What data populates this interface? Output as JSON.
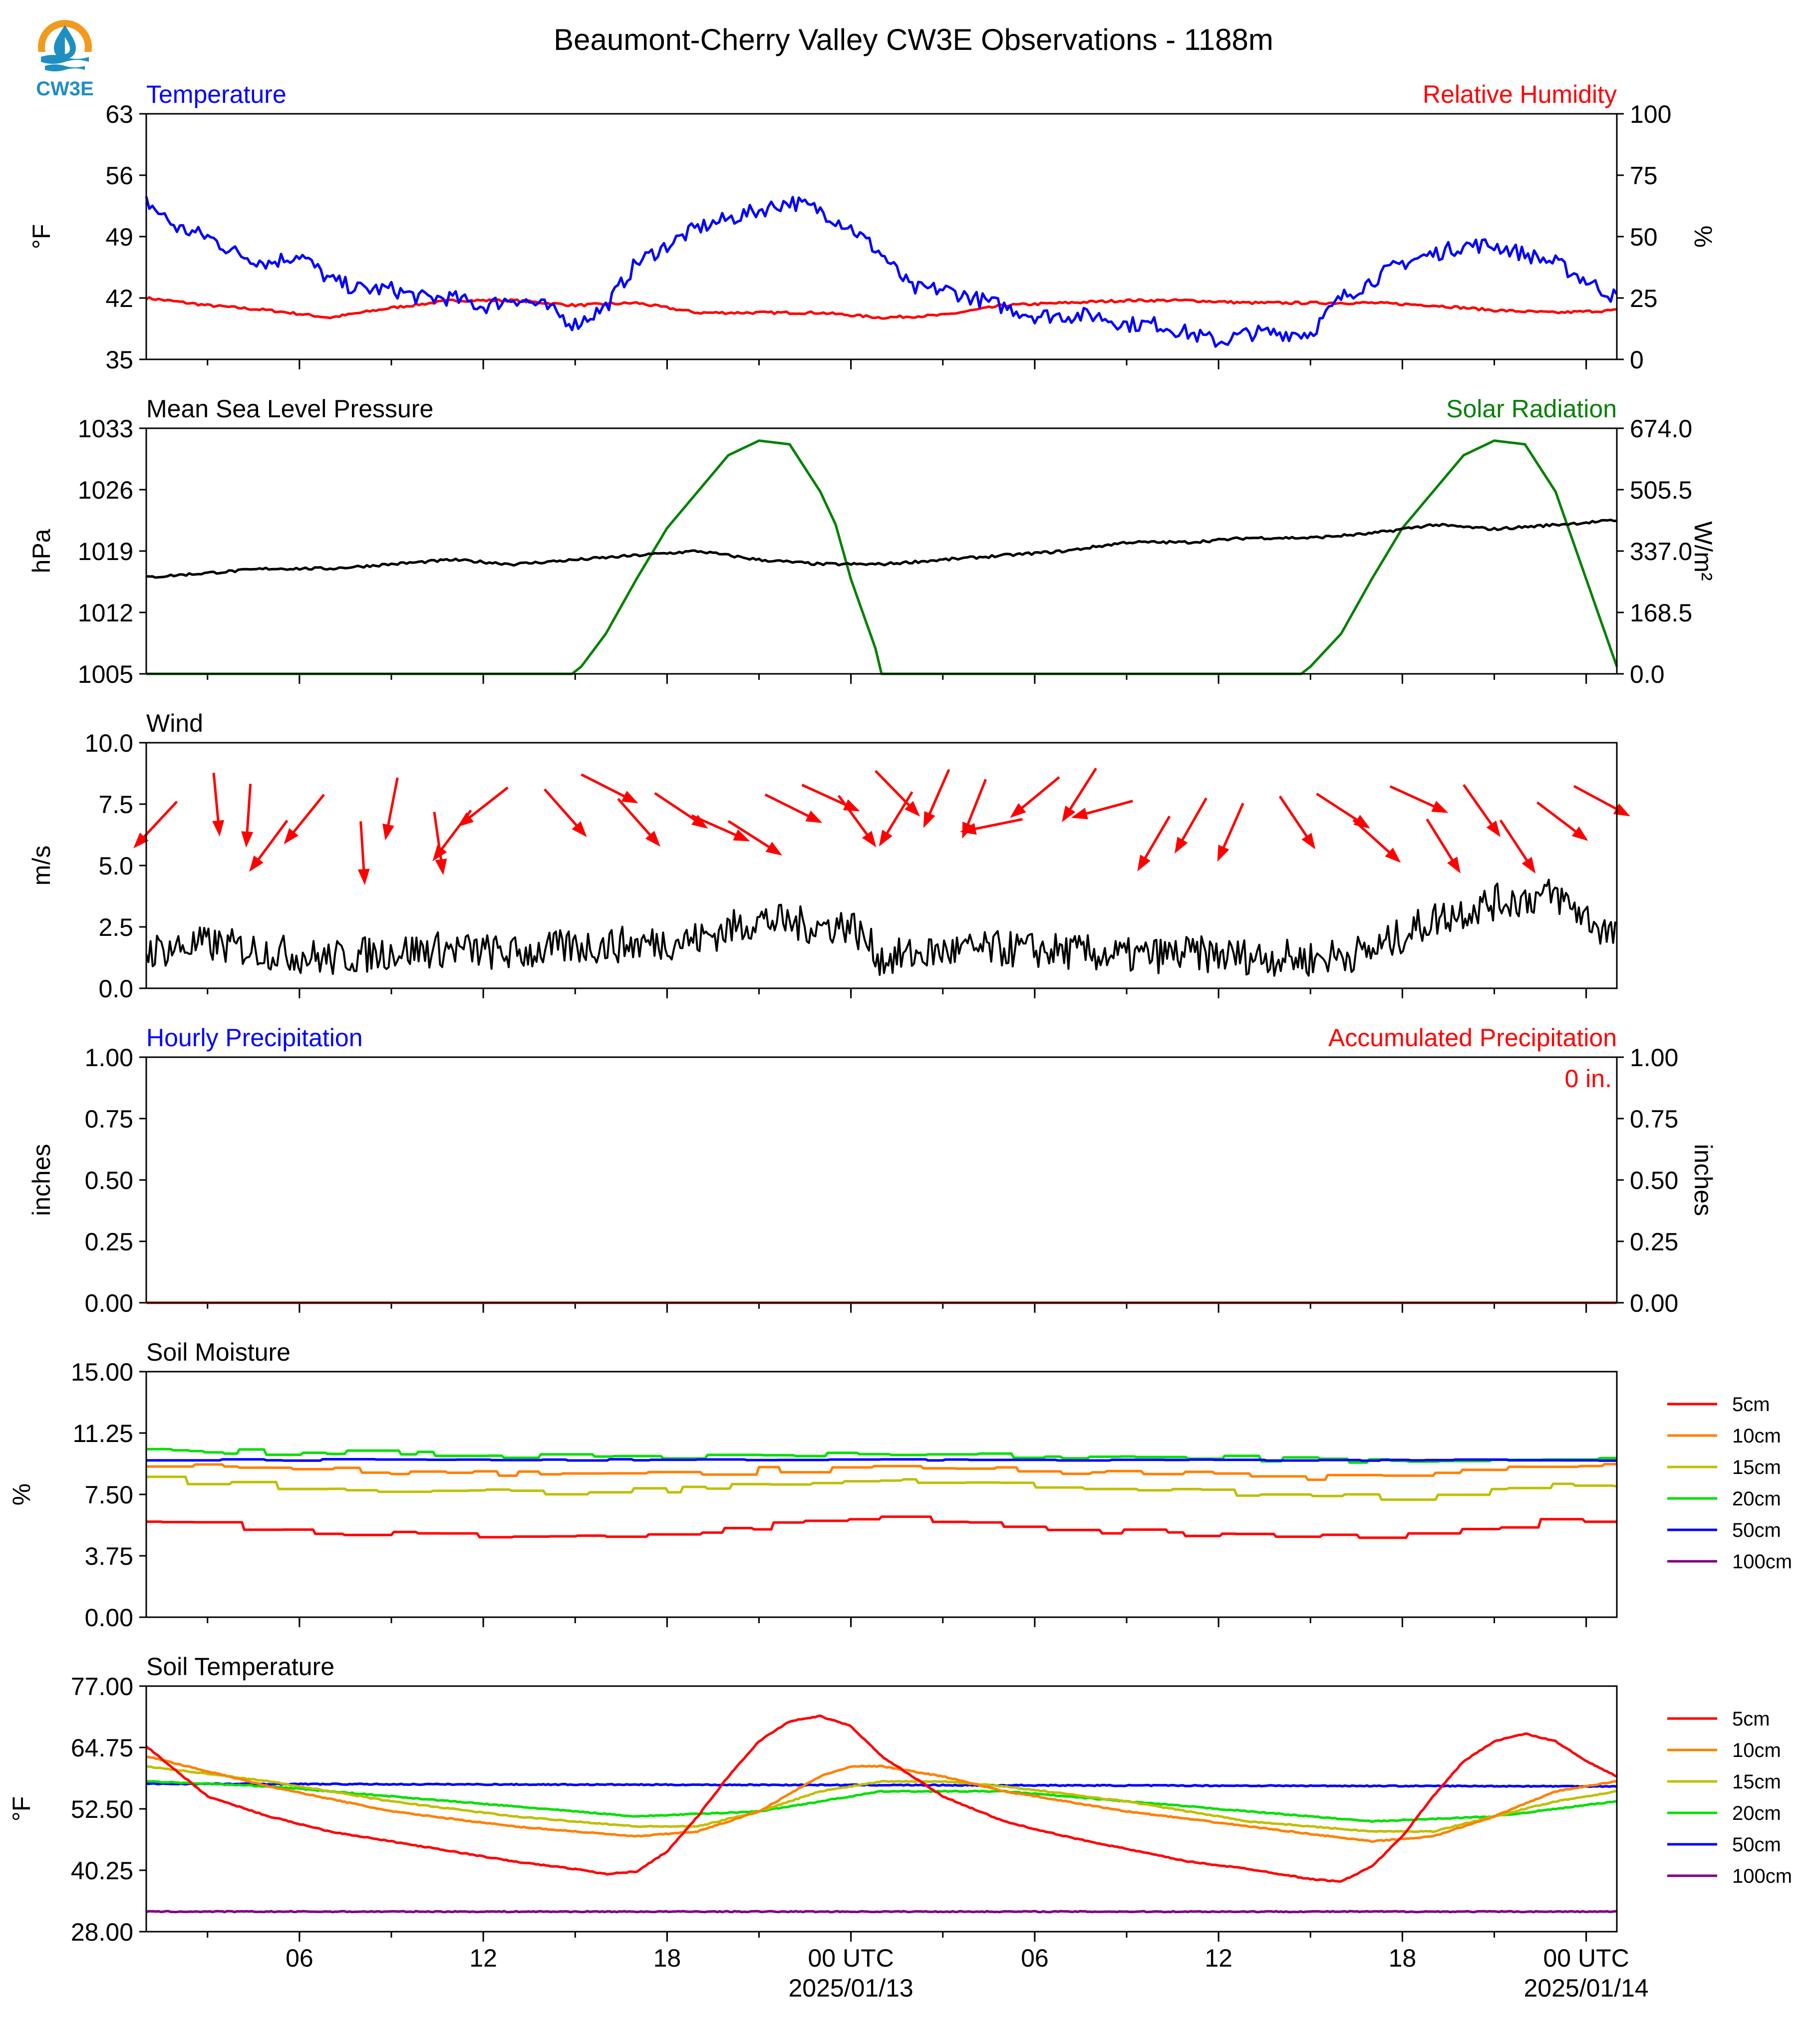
{
  "title": "Beaumont-Cherry Valley CW3E Observations - 1188m",
  "logo": {
    "text": "CW3E",
    "colors": {
      "ring": "#F29A1E",
      "drop": "#1F8FC2",
      "text": "#1F8FC2"
    }
  },
  "colors": {
    "temperature": "#0000FF",
    "humidity": "#FF0000",
    "pressure": "#000000",
    "solar": "#008000",
    "wind": "#000000",
    "wind_arrow": "#FF0000",
    "hourly_precip": "#0000FF",
    "accum_precip": "#FF0000",
    "soil_5cm": "#FF0000",
    "soil_10cm": "#FF8000",
    "soil_15cm": "#BFBF00",
    "soil_20cm": "#00E000",
    "soil_50cm": "#0000FF",
    "soil_100cm": "#800080"
  },
  "x_axis": {
    "range_hours": [
      0,
      48
    ],
    "tick_labels": [
      {
        "hour": 5,
        "label": "06"
      },
      {
        "hour": 11,
        "label": "12"
      },
      {
        "hour": 17,
        "label": "18"
      },
      {
        "hour": 23,
        "label": "00 UTC",
        "date": "2025/01/13"
      },
      {
        "hour": 29,
        "label": "06"
      },
      {
        "hour": 35,
        "label": "12"
      },
      {
        "hour": 41,
        "label": "18"
      },
      {
        "hour": 47,
        "label": "00 UTC",
        "date": "2025/01/14"
      }
    ]
  },
  "panels": {
    "temperature": {
      "left_title": "Temperature",
      "right_title": "Relative Humidity",
      "ylabel": "°F",
      "y2label": "%",
      "yticks": [
        "35",
        "42",
        "49",
        "56",
        "63"
      ],
      "ylim": [
        35,
        63
      ],
      "y2ticks": [
        "0",
        "25",
        "50",
        "75",
        "100"
      ],
      "y2lim": [
        0,
        100
      ]
    },
    "pressure": {
      "left_title": "Mean Sea Level Pressure",
      "right_title": "Solar Radiation",
      "ylabel": "hPa",
      "y2label": "W/m²",
      "yticks": [
        "1005",
        "1012",
        "1019",
        "1026",
        "1033"
      ],
      "ylim": [
        1005,
        1033
      ],
      "y2ticks": [
        "0.0",
        "168.5",
        "337.0",
        "505.5",
        "674.0"
      ],
      "y2lim": [
        0,
        674
      ]
    },
    "wind": {
      "left_title": "Wind",
      "ylabel": "m/s",
      "yticks": [
        "0.0",
        "2.5",
        "5.0",
        "7.5",
        "10.0"
      ],
      "ylim": [
        0,
        10
      ]
    },
    "precip": {
      "left_title": "Hourly Precipitation",
      "right_title": "Accumulated Precipitation",
      "ylabel": "inches",
      "y2label": "inches",
      "yticks": [
        "0.00",
        "0.25",
        "0.50",
        "0.75",
        "1.00"
      ],
      "y2ticks": [
        "0.00",
        "0.25",
        "0.50",
        "0.75",
        "1.00"
      ],
      "ylim": [
        0,
        1
      ],
      "total_label": "0 in."
    },
    "soil_moisture": {
      "left_title": "Soil Moisture",
      "ylabel": "%",
      "yticks": [
        "0.00",
        "3.75",
        "7.50",
        "11.25",
        "15.00"
      ],
      "ylim": [
        0,
        15
      ],
      "legend": [
        "5cm",
        "10cm",
        "15cm",
        "20cm",
        "50cm",
        "100cm"
      ]
    },
    "soil_temperature": {
      "left_title": "Soil Temperature",
      "ylabel": "°F",
      "yticks": [
        "28.00",
        "40.25",
        "52.50",
        "64.75",
        "77.00"
      ],
      "ylim": [
        28,
        77
      ],
      "legend": [
        "5cm",
        "10cm",
        "15cm",
        "20cm",
        "50cm",
        "100cm"
      ]
    }
  },
  "chart_data": [
    {
      "type": "line",
      "title": "Temperature",
      "x_unit": "hours",
      "series": [
        {
          "name": "Temperature",
          "x": [
            0,
            1,
            2,
            3,
            4,
            5,
            6,
            7,
            8,
            9,
            10,
            11,
            12,
            13,
            14,
            15,
            16,
            17,
            18,
            19,
            20,
            21,
            22,
            23,
            24,
            25,
            26,
            27,
            28,
            29,
            30,
            31,
            32,
            33,
            34,
            35,
            36,
            37,
            38,
            39,
            40,
            41,
            42,
            43,
            44,
            45,
            46,
            47,
            48
          ],
          "y": [
            53,
            50,
            49,
            47,
            46,
            47,
            44,
            43,
            43,
            42,
            42,
            41,
            42,
            41,
            39,
            41,
            46,
            48,
            50,
            51,
            52,
            53,
            52,
            50,
            47,
            43,
            43,
            42,
            41,
            40,
            40,
            40,
            39,
            39,
            38,
            37,
            38,
            38,
            38,
            42,
            44,
            46,
            47,
            48,
            48,
            47,
            46,
            44,
            42
          ]
        },
        {
          "name": "Relative Humidity",
          "x": [
            0,
            2,
            4,
            6,
            8,
            10,
            12,
            14,
            16,
            18,
            20,
            22,
            24,
            26,
            28,
            30,
            32,
            34,
            36,
            38,
            40,
            42,
            44,
            46,
            48
          ],
          "y": [
            25,
            22,
            20,
            17,
            21,
            24,
            24,
            22,
            23,
            19,
            19,
            19,
            17,
            18,
            22,
            23,
            24,
            24,
            23,
            23,
            23,
            22,
            20,
            19,
            20
          ]
        }
      ]
    },
    {
      "type": "line",
      "title": "Mean Sea Level Pressure",
      "x_unit": "hours",
      "series": [
        {
          "name": "Mean Sea Level Pressure",
          "x": [
            0,
            2,
            4,
            6,
            8,
            10,
            12,
            14,
            16,
            18,
            20,
            22,
            24,
            26,
            28,
            30,
            32,
            34,
            36,
            38,
            40,
            42,
            44,
            46,
            48
          ],
          "y": [
            1016,
            1016.5,
            1017,
            1017,
            1017.5,
            1018,
            1017.5,
            1018,
            1018.5,
            1019,
            1018,
            1017.5,
            1017.5,
            1018,
            1018.5,
            1019,
            1020,
            1020,
            1020.5,
            1020.5,
            1021,
            1022,
            1021.5,
            1022,
            1022.5
          ]
        },
        {
          "name": "Solar Radiation",
          "x": [
            0,
            13.9,
            14.2,
            15,
            16,
            17,
            18,
            19,
            20,
            21,
            22,
            22.5,
            23,
            23.8,
            24,
            37.7,
            38,
            39,
            40,
            41,
            42,
            43,
            44,
            45,
            46,
            47,
            48
          ],
          "y": [
            0,
            0,
            20,
            110,
            260,
            400,
            500,
            600,
            640,
            630,
            500,
            410,
            260,
            70,
            0,
            0,
            20,
            110,
            260,
            400,
            500,
            600,
            640,
            630,
            500,
            260,
            20
          ]
        }
      ]
    },
    {
      "type": "line",
      "title": "Wind",
      "x_unit": "hours",
      "series": [
        {
          "name": "Wind speed",
          "x": [
            0,
            2,
            4,
            6,
            8,
            10,
            12,
            14,
            16,
            18,
            20,
            22,
            23,
            24,
            26,
            28,
            30,
            32,
            34,
            36,
            38,
            40,
            42,
            44,
            46,
            48
          ],
          "y": [
            1.5,
            1.8,
            1.5,
            1.2,
            1.5,
            1.6,
            1.4,
            1.7,
            1.8,
            2.0,
            2.8,
            2.5,
            2.6,
            1.2,
            1.5,
            1.6,
            1.5,
            1.3,
            1.4,
            1.3,
            1.2,
            1.5,
            2.8,
            3.5,
            3.8,
            2.0
          ]
        }
      ]
    },
    {
      "type": "line",
      "title": "Precipitation",
      "x_unit": "hours",
      "series": [
        {
          "name": "Hourly Precipitation",
          "x": [
            0,
            48
          ],
          "y": [
            0,
            0
          ]
        },
        {
          "name": "Accumulated Precipitation",
          "x": [
            0,
            48
          ],
          "y": [
            0,
            0
          ]
        }
      ]
    },
    {
      "type": "line",
      "title": "Soil Moisture",
      "x_unit": "hours",
      "series": [
        {
          "name": "5cm",
          "x": [
            0,
            4,
            8,
            12,
            16,
            20,
            22,
            24,
            28,
            32,
            36,
            40,
            44,
            46,
            48
          ],
          "y": [
            5.9,
            5.3,
            5.1,
            5.0,
            5.0,
            5.5,
            6.2,
            6.0,
            5.5,
            5.2,
            5.0,
            4.9,
            5.5,
            6.2,
            5.7
          ]
        },
        {
          "name": "10cm",
          "x": [
            0,
            4,
            8,
            12,
            16,
            20,
            24,
            28,
            32,
            36,
            40,
            44,
            48
          ],
          "y": [
            9.3,
            9.0,
            8.9,
            8.8,
            8.7,
            9.0,
            9.1,
            9.0,
            8.8,
            8.6,
            8.5,
            9.0,
            9.2
          ]
        },
        {
          "name": "15cm",
          "x": [
            0,
            4,
            8,
            12,
            16,
            20,
            24,
            28,
            32,
            36,
            40,
            44,
            48
          ],
          "y": [
            8.4,
            8.0,
            7.8,
            7.6,
            7.7,
            8.1,
            8.3,
            8.1,
            7.8,
            7.5,
            7.3,
            7.9,
            8.1
          ]
        },
        {
          "name": "20cm",
          "x": [
            0,
            4,
            8,
            12,
            16,
            20,
            24,
            28,
            32,
            36,
            40,
            44,
            48
          ],
          "y": [
            10.2,
            10.1,
            10.0,
            9.9,
            9.7,
            9.8,
            10.0,
            9.9,
            9.8,
            9.7,
            9.6,
            9.7,
            9.7
          ]
        },
        {
          "name": "50cm",
          "x": [
            0,
            48
          ],
          "y": [
            9.6,
            9.6
          ]
        },
        {
          "name": "100cm",
          "x": [],
          "y": []
        }
      ]
    },
    {
      "type": "line",
      "title": "Soil Temperature",
      "x_unit": "hours",
      "series": [
        {
          "name": "5cm",
          "x": [
            0,
            2,
            4,
            6,
            8,
            10,
            12,
            14,
            15,
            16,
            17,
            18,
            19,
            20,
            21,
            22,
            23,
            24,
            26,
            28,
            30,
            32,
            34,
            36,
            38,
            39,
            40,
            41,
            42,
            43,
            44,
            45,
            46,
            47,
            48
          ],
          "y": [
            65,
            55,
            51,
            48,
            46,
            44,
            42,
            40.5,
            39.5,
            40,
            44,
            51,
            59,
            66,
            70,
            71,
            69,
            63,
            55,
            50,
            47,
            44.5,
            42,
            40.5,
            38.5,
            38,
            41,
            47,
            55,
            62,
            66,
            67.5,
            66,
            62,
            59
          ]
        },
        {
          "name": "10cm",
          "x": [
            0,
            4,
            8,
            12,
            16,
            18,
            20,
            22,
            23,
            24,
            26,
            28,
            32,
            36,
            40,
            42,
            44,
            46,
            48
          ],
          "y": [
            63,
            57,
            52,
            49,
            47,
            48,
            52,
            59,
            61,
            61,
            59,
            56,
            52,
            49,
            46,
            47,
            51,
            56,
            58
          ]
        },
        {
          "name": "15cm",
          "x": [
            0,
            4,
            8,
            12,
            16,
            18,
            20,
            22,
            24,
            26,
            28,
            32,
            36,
            40,
            42,
            44,
            46,
            48
          ],
          "y": [
            61,
            58,
            54,
            51,
            49,
            49,
            52,
            56,
            58,
            58,
            57,
            54,
            50,
            48,
            48,
            51,
            54,
            56
          ]
        },
        {
          "name": "20cm",
          "x": [
            0,
            4,
            8,
            12,
            16,
            20,
            24,
            28,
            32,
            36,
            40,
            44,
            48
          ],
          "y": [
            58,
            57,
            55,
            53,
            51,
            52,
            56,
            56,
            54,
            52,
            50,
            51,
            54
          ]
        },
        {
          "name": "50cm",
          "x": [
            0,
            48
          ],
          "y": [
            57.5,
            57.0
          ]
        },
        {
          "name": "100cm",
          "x": [
            0,
            48
          ],
          "y": [
            32,
            32
          ]
        }
      ]
    }
  ]
}
